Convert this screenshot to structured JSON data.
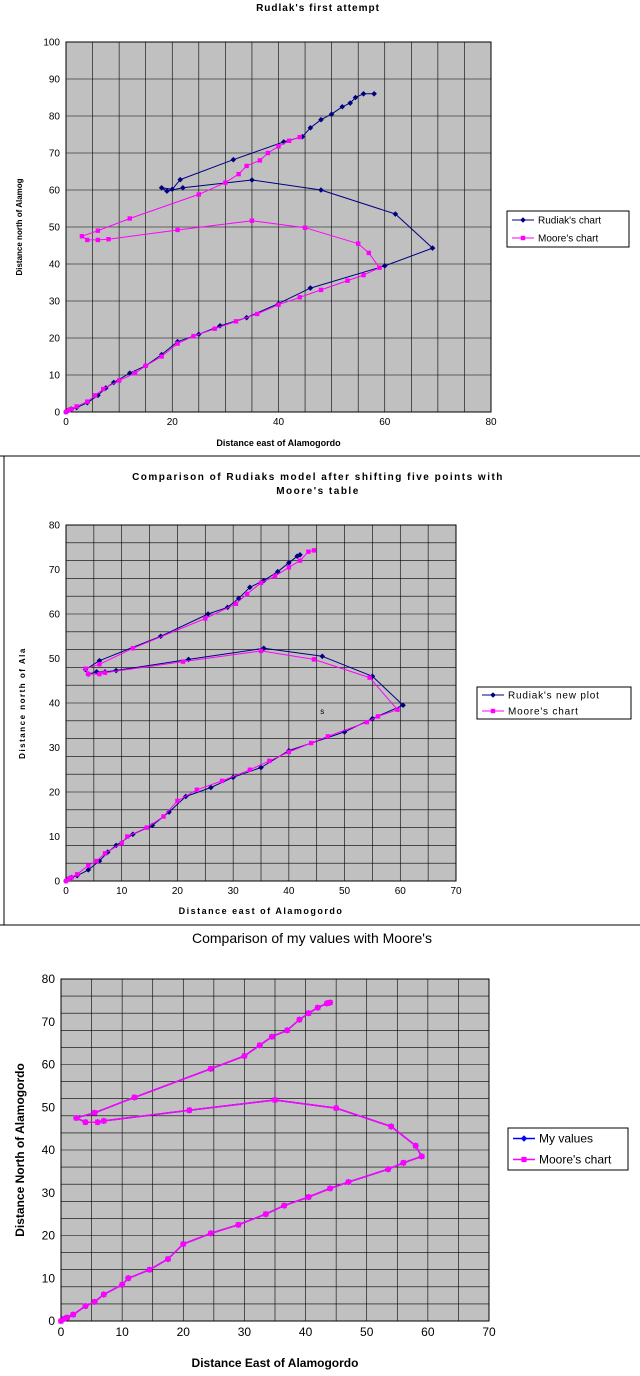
{
  "chart_data": [
    {
      "type": "scatter",
      "title": "Rudlak's first attempt",
      "xlabel": "Distance east of Alamogordo",
      "ylabel": "Distance north of Alamog",
      "xlim": [
        0,
        80
      ],
      "ylim": [
        0,
        100
      ],
      "x_ticks": [
        "0",
        "20",
        "40",
        "60",
        "80"
      ],
      "y_ticks": [
        "0",
        "10",
        "20",
        "30",
        "40",
        "50",
        "60",
        "70",
        "80",
        "90",
        "100"
      ],
      "grid": true,
      "plot_background": "#c0c0c0",
      "legend_position": "right",
      "series": [
        {
          "name": "Rudiak's chart",
          "color": "#000080",
          "marker": "diamond",
          "points": [
            [
              0,
              0
            ],
            [
              0.5,
              0.5
            ],
            [
              1,
              0.8
            ],
            [
              2,
              1.2
            ],
            [
              4,
              2.5
            ],
            [
              6,
              4.5
            ],
            [
              7.5,
              6.5
            ],
            [
              9,
              8
            ],
            [
              12,
              10.5
            ],
            [
              15,
              12.5
            ],
            [
              18,
              15.5
            ],
            [
              21,
              19
            ],
            [
              25,
              21
            ],
            [
              29,
              23.3
            ],
            [
              34,
              25.5
            ],
            [
              40,
              29.3
            ],
            [
              46,
              33.5
            ],
            [
              60,
              39.5
            ],
            [
              69,
              44.3
            ],
            [
              62,
              53.5
            ],
            [
              48,
              60
            ],
            [
              35,
              62.7
            ],
            [
              22,
              60.6
            ],
            [
              19,
              59.7
            ],
            [
              18,
              60.6
            ],
            [
              20,
              60.2
            ],
            [
              21.5,
              62.8
            ],
            [
              31.5,
              68.2
            ],
            [
              41,
              73
            ],
            [
              44.5,
              74.4
            ],
            [
              46,
              76.8
            ],
            [
              48,
              79
            ],
            [
              50,
              80.5
            ],
            [
              52,
              82.5
            ],
            [
              53.5,
              83.5
            ],
            [
              54.5,
              85
            ],
            [
              56,
              86
            ],
            [
              58,
              86
            ]
          ]
        },
        {
          "name": "Moore's chart",
          "color": "#ff00ff",
          "marker": "square",
          "points": [
            [
              0,
              0
            ],
            [
              0.5,
              0.5
            ],
            [
              1,
              0.8
            ],
            [
              2,
              1.5
            ],
            [
              4,
              2.8
            ],
            [
              5.5,
              4.5
            ],
            [
              7,
              6.2
            ],
            [
              10,
              8.5
            ],
            [
              13,
              10.5
            ],
            [
              15,
              12.5
            ],
            [
              18,
              15
            ],
            [
              21,
              18.5
            ],
            [
              24,
              20.5
            ],
            [
              28,
              22.5
            ],
            [
              32,
              24.5
            ],
            [
              36,
              26.5
            ],
            [
              40,
              29
            ],
            [
              44,
              31
            ],
            [
              48,
              33
            ],
            [
              53,
              35.5
            ],
            [
              56,
              37
            ],
            [
              59,
              39
            ],
            [
              57,
              43
            ],
            [
              55,
              45.5
            ],
            [
              45,
              49.8
            ],
            [
              35,
              51.7
            ],
            [
              21,
              49.2
            ],
            [
              8,
              46.7
            ],
            [
              6,
              46.5
            ],
            [
              4,
              46.5
            ],
            [
              3,
              47.5
            ],
            [
              6,
              49
            ],
            [
              12,
              52.3
            ],
            [
              25,
              58.8
            ],
            [
              30,
              62
            ],
            [
              32.5,
              64.3
            ],
            [
              34,
              66.5
            ],
            [
              36.5,
              68
            ],
            [
              38,
              70
            ],
            [
              40,
              71.8
            ],
            [
              42,
              73.3
            ],
            [
              44,
              74.3
            ]
          ]
        }
      ]
    },
    {
      "type": "scatter",
      "title": "Comparison of Rudiaks model after shifting five points with Moore's table",
      "xlabel": "Distance east of Alamogordo",
      "ylabel": "Distance north of Ala",
      "xlim": [
        0,
        70
      ],
      "ylim": [
        0,
        80
      ],
      "x_ticks": [
        "0",
        "10",
        "20",
        "30",
        "40",
        "50",
        "60",
        "70"
      ],
      "y_ticks": [
        "0",
        "10",
        "20",
        "30",
        "40",
        "50",
        "60",
        "70",
        "80"
      ],
      "grid": true,
      "plot_background": "#c0c0c0",
      "legend_position": "right",
      "annotation": "s",
      "series": [
        {
          "name": "Rudiak's new plot",
          "color": "#000080",
          "marker": "diamond",
          "points": [
            [
              0,
              0
            ],
            [
              0.5,
              0.5
            ],
            [
              1,
              0.8
            ],
            [
              2,
              1.2
            ],
            [
              4,
              2.5
            ],
            [
              6,
              4.5
            ],
            [
              7.5,
              6.5
            ],
            [
              9,
              8
            ],
            [
              12,
              10.5
            ],
            [
              15.5,
              12.5
            ],
            [
              18.5,
              15.5
            ],
            [
              21.5,
              19
            ],
            [
              26,
              21
            ],
            [
              30,
              23.3
            ],
            [
              35,
              25.5
            ],
            [
              40,
              29.3
            ],
            [
              50,
              33.5
            ],
            [
              55,
              36.5
            ],
            [
              60.5,
              39.5
            ],
            [
              55,
              46
            ],
            [
              46,
              50.5
            ],
            [
              35.5,
              52.3
            ],
            [
              22,
              49.8
            ],
            [
              9,
              47.3
            ],
            [
              7,
              47
            ],
            [
              5.5,
              47
            ],
            [
              4,
              46.5
            ],
            [
              3.5,
              47.5
            ],
            [
              6,
              49.5
            ],
            [
              17,
              55
            ],
            [
              25.5,
              60
            ],
            [
              29,
              61.5
            ],
            [
              31,
              63.5
            ],
            [
              33,
              66
            ],
            [
              35.5,
              67.5
            ],
            [
              38,
              69.5
            ],
            [
              40,
              71.5
            ],
            [
              41.5,
              73
            ],
            [
              42,
              73.3
            ]
          ]
        },
        {
          "name": "Moore's chart",
          "color": "#ff00ff",
          "marker": "square",
          "points": [
            [
              0,
              0
            ],
            [
              0.5,
              0.5
            ],
            [
              1,
              0.8
            ],
            [
              2,
              1.5
            ],
            [
              4,
              3.5
            ],
            [
              5.5,
              4.5
            ],
            [
              7,
              6.2
            ],
            [
              10,
              8.5
            ],
            [
              11,
              10
            ],
            [
              14.5,
              12
            ],
            [
              17.5,
              14.5
            ],
            [
              20,
              18
            ],
            [
              23.5,
              20.5
            ],
            [
              28,
              22.5
            ],
            [
              33,
              25
            ],
            [
              36.5,
              27
            ],
            [
              40,
              29
            ],
            [
              44,
              31
            ],
            [
              47,
              32.5
            ],
            [
              54,
              35.7
            ],
            [
              56,
              37
            ],
            [
              59.5,
              38.5
            ],
            [
              54.5,
              45.7
            ],
            [
              44.5,
              49.8
            ],
            [
              35,
              51.7
            ],
            [
              21,
              49.3
            ],
            [
              7,
              46.8
            ],
            [
              6,
              46.5
            ],
            [
              4,
              46.5
            ],
            [
              3.5,
              47.7
            ],
            [
              6,
              48.7
            ],
            [
              12,
              52.3
            ],
            [
              25,
              59
            ],
            [
              30.5,
              62.3
            ],
            [
              32.5,
              64.5
            ],
            [
              35,
              67
            ],
            [
              37.5,
              68.5
            ],
            [
              40,
              70.5
            ],
            [
              42,
              72
            ],
            [
              43.5,
              74
            ],
            [
              44.5,
              74.3
            ]
          ]
        }
      ]
    },
    {
      "type": "scatter",
      "title": "Comparison of my values with Moore's",
      "xlabel": "Distance East of Alamogordo",
      "ylabel": "Distance North of Alamogordo",
      "xlim": [
        0,
        70
      ],
      "ylim": [
        0,
        80
      ],
      "x_ticks": [
        "0",
        "10",
        "20",
        "30",
        "40",
        "50",
        "60",
        "70"
      ],
      "y_ticks": [
        "0",
        "10",
        "20",
        "30",
        "40",
        "50",
        "60",
        "70",
        "80"
      ],
      "grid": true,
      "plot_background": "#c0c0c0",
      "legend_position": "right",
      "series": [
        {
          "name": "My values",
          "color": "#0000ff",
          "marker": "diamond",
          "points": [
            [
              0,
              0
            ],
            [
              0.5,
              0.5
            ],
            [
              1,
              0.8
            ],
            [
              2,
              1.5
            ],
            [
              4,
              3.5
            ],
            [
              5.5,
              4.5
            ],
            [
              7,
              6.2
            ],
            [
              10,
              8.5
            ],
            [
              11,
              10
            ],
            [
              14.5,
              12
            ],
            [
              17.5,
              14.5
            ],
            [
              20,
              18
            ],
            [
              24.5,
              20.5
            ],
            [
              29,
              22.5
            ],
            [
              33.5,
              25
            ],
            [
              36.5,
              27
            ],
            [
              40.5,
              29
            ],
            [
              44,
              31
            ],
            [
              47,
              32.5
            ],
            [
              53.5,
              35.5
            ],
            [
              56,
              37
            ],
            [
              59,
              38.5
            ],
            [
              58,
              41
            ],
            [
              54,
              45.5
            ],
            [
              45,
              49.8
            ],
            [
              35,
              51.7
            ],
            [
              21,
              49.3
            ],
            [
              7,
              46.8
            ],
            [
              6,
              46.5
            ],
            [
              4,
              46.5
            ],
            [
              2.5,
              47.5
            ],
            [
              5.5,
              48.7
            ],
            [
              12,
              52.3
            ],
            [
              24.5,
              59
            ],
            [
              30,
              62
            ],
            [
              32.5,
              64.5
            ],
            [
              34.5,
              66.5
            ],
            [
              37,
              68
            ],
            [
              39,
              70.5
            ],
            [
              40.5,
              72
            ],
            [
              42,
              73.3
            ],
            [
              43.5,
              74.3
            ],
            [
              44,
              74.5
            ]
          ]
        },
        {
          "name": "Moore's chart",
          "color": "#ff00ff",
          "marker": "square",
          "points": [
            [
              0,
              0
            ],
            [
              0.5,
              0.5
            ],
            [
              1,
              0.8
            ],
            [
              2,
              1.5
            ],
            [
              4,
              3.5
            ],
            [
              5.5,
              4.5
            ],
            [
              7,
              6.2
            ],
            [
              10,
              8.5
            ],
            [
              11,
              10
            ],
            [
              14.5,
              12
            ],
            [
              17.5,
              14.5
            ],
            [
              20,
              18
            ],
            [
              24.5,
              20.5
            ],
            [
              29,
              22.5
            ],
            [
              33.5,
              25
            ],
            [
              36.5,
              27
            ],
            [
              40.5,
              29
            ],
            [
              44,
              31
            ],
            [
              47,
              32.5
            ],
            [
              53.5,
              35.5
            ],
            [
              56,
              37
            ],
            [
              59,
              38.5
            ],
            [
              58,
              41
            ],
            [
              54,
              45.5
            ],
            [
              45,
              49.8
            ],
            [
              35,
              51.7
            ],
            [
              21,
              49.3
            ],
            [
              7,
              46.8
            ],
            [
              6,
              46.5
            ],
            [
              4,
              46.5
            ],
            [
              2.5,
              47.5
            ],
            [
              5.5,
              48.7
            ],
            [
              12,
              52.3
            ],
            [
              24.5,
              59
            ],
            [
              30,
              62
            ],
            [
              32.5,
              64.5
            ],
            [
              34.5,
              66.5
            ],
            [
              37,
              68
            ],
            [
              39,
              70.5
            ],
            [
              40.5,
              72
            ],
            [
              42,
              73.3
            ],
            [
              43.5,
              74.3
            ],
            [
              44,
              74.5
            ]
          ]
        }
      ]
    }
  ]
}
